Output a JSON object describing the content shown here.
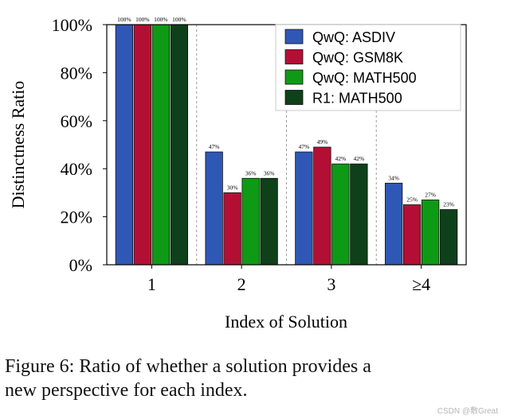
{
  "chart_data": {
    "type": "bar",
    "categories": [
      "1",
      "2",
      "3",
      "≥4"
    ],
    "series": [
      {
        "name": "QwQ: ASDIV",
        "color": "#2f57b5",
        "values": [
          100,
          47,
          47,
          34
        ],
        "labels": [
          "100%",
          "47%",
          "47%",
          "34%"
        ]
      },
      {
        "name": "QwQ: GSM8K",
        "color": "#b30f35",
        "values": [
          100,
          30,
          49,
          25
        ],
        "labels": [
          "100%",
          "30%",
          "49%",
          "25%"
        ]
      },
      {
        "name": "QwQ: MATH500",
        "color": "#0f9a16",
        "values": [
          100,
          36,
          42,
          27
        ],
        "labels": [
          "100%",
          "36%",
          "42%",
          "27%"
        ]
      },
      {
        "name": "R1: MATH500",
        "color": "#0e4019",
        "values": [
          100,
          36,
          42,
          23
        ],
        "labels": [
          "100%",
          "36%",
          "42%",
          "23%"
        ]
      }
    ],
    "xlabel": "Index of Solution",
    "ylabel": "Distinctness Ratio",
    "ylim": [
      0,
      100
    ],
    "yticks": [
      0,
      20,
      40,
      60,
      80,
      100
    ],
    "ytick_labels": [
      "0%",
      "20%",
      "40%",
      "60%",
      "80%",
      "100%"
    ],
    "legend": "top-right",
    "group_separators": "dashed"
  },
  "caption": {
    "line1": "Figure 6: Ratio of whether a solution provides a",
    "line2": "new perspective for each index."
  },
  "watermark": "CSDN @敷Great"
}
